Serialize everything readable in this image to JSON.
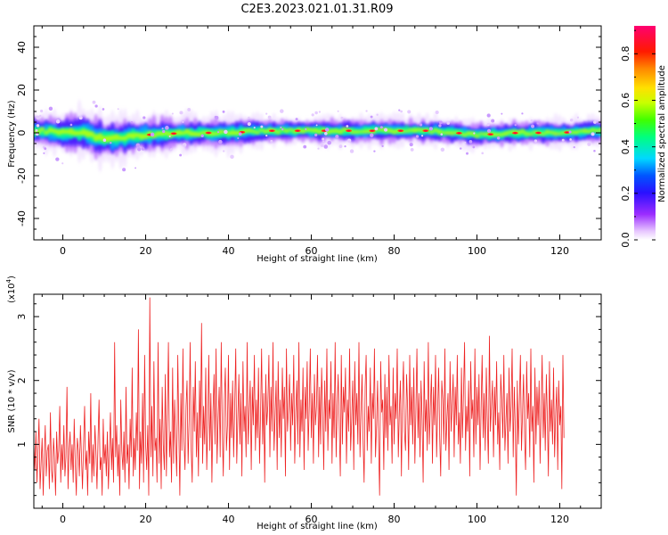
{
  "title": "C2E3.2023.021.01.31.R09",
  "colors": {
    "snr_line": "#ee2222",
    "axis": "#000000"
  },
  "chart_data": [
    {
      "type": "heatmap",
      "xlabel": "Height of straight line (km)",
      "ylabel": "Frequency (Hz)",
      "xlim": [
        -7,
        130
      ],
      "ylim": [
        -50,
        50
      ],
      "xticks": [
        0,
        20,
        40,
        60,
        80,
        100,
        120
      ],
      "xtick_labels": [
        "0",
        "20",
        "40",
        "60",
        "80",
        "100",
        "120"
      ],
      "yticks": [
        -40,
        -20,
        0,
        20,
        40
      ],
      "ytick_labels": [
        "-40",
        "-20",
        "0",
        "20",
        "40"
      ],
      "colorbar": {
        "label": "Normalized spectral amplitude",
        "range": [
          0,
          0.92
        ],
        "ticks": [
          0.0,
          0.2,
          0.4,
          0.6,
          0.8
        ],
        "tick_labels": [
          "0.0",
          "0.2",
          "0.4",
          "0.6",
          "0.8"
        ],
        "colormap": "rainbow (white-violet-blue-cyan-green-yellow-red-magenta)"
      },
      "band": {
        "height_km": [
          -5,
          0,
          5,
          10,
          20,
          30,
          40,
          50,
          60,
          70,
          80,
          90,
          100,
          110,
          120,
          128
        ],
        "center_freq_hz": [
          1,
          0,
          0,
          -3,
          -1,
          0,
          0,
          1,
          1,
          1,
          1,
          1,
          -1,
          0,
          0,
          1
        ],
        "halfwidth_hz": [
          5,
          6,
          7,
          7,
          6,
          5,
          5,
          4,
          4,
          4,
          4,
          4,
          4,
          4,
          4,
          4
        ]
      }
    },
    {
      "type": "line",
      "xlabel": "Height of straight line (km)",
      "ylabel": "SNR (10 * v/v)",
      "multiplier": "(x10",
      "multiplier_exp": "4",
      "multiplier_close": ")",
      "xlim": [
        -7,
        130
      ],
      "ylim": [
        0,
        3.35
      ],
      "xticks": [
        0,
        20,
        40,
        60,
        80,
        100,
        120
      ],
      "xtick_labels": [
        "0",
        "20",
        "40",
        "60",
        "80",
        "100",
        "120"
      ],
      "yticks": [
        1,
        2,
        3
      ],
      "ytick_labels": [
        "1",
        "2",
        "3"
      ],
      "series": [
        {
          "color": "#ee2222",
          "x_start": -7,
          "x_step": 0.25,
          "y": [
            1.0,
            0.6,
            1.2,
            0.4,
            0.9,
            1.4,
            0.3,
            0.7,
            1.1,
            0.2,
            0.8,
            1.3,
            0.5,
            0.9,
            1.0,
            0.3,
            1.5,
            0.6,
            0.4,
            1.1,
            0.8,
            0.2,
            1.2,
            0.7,
            0.9,
            1.6,
            0.4,
            1.0,
            0.6,
            1.3,
            0.5,
            0.8,
            1.9,
            0.3,
            0.9,
            1.2,
            0.6,
            1.0,
            0.4,
            1.4,
            0.7,
            0.2,
            1.1,
            0.9,
            0.5,
            1.3,
            0.8,
            0.3,
            1.0,
            1.6,
            0.6,
            0.9,
            0.2,
            1.2,
            0.7,
            1.8,
            0.4,
            1.0,
            0.5,
            1.3,
            0.9,
            0.3,
            1.1,
            1.7,
            0.6,
            0.8,
            0.2,
            1.4,
            0.7,
            1.0,
            0.5,
            1.2,
            0.3,
            0.9,
            1.5,
            0.6,
            1.1,
            0.4,
            2.6,
            0.8,
            1.3,
            0.5,
            1.0,
            0.2,
            1.7,
            0.9,
            0.6,
            1.2,
            0.4,
            1.9,
            0.7,
            1.0,
            0.3,
            1.4,
            0.8,
            2.2,
            0.5,
            1.1,
            0.6,
            1.5,
            0.9,
            2.8,
            0.3,
            1.2,
            0.7,
            1.8,
            0.4,
            2.4,
            1.0,
            0.6,
            1.3,
            0.2,
            3.3,
            0.8,
            1.6,
            0.5,
            2.3,
            0.9,
            1.1,
            0.4,
            2.6,
            0.7,
            1.4,
            0.3,
            1.9,
            1.0,
            0.6,
            2.1,
            0.5,
            1.5,
            2.6,
            0.8,
            1.2,
            0.4,
            2.2,
            0.7,
            1.7,
            1.0,
            0.5,
            2.4,
            1.3,
            0.2,
            1.8,
            0.9,
            2.5,
            1.1,
            0.6,
            1.6,
            2.0,
            0.7,
            1.4,
            2.6,
            0.9,
            0.4,
            1.9,
            1.2,
            2.3,
            0.8,
            1.5,
            0.5,
            2.0,
            1.1,
            2.9,
            0.7,
            1.6,
            1.0,
            2.2,
            0.6,
            1.3,
            2.4,
            0.9,
            1.8,
            0.4,
            1.5,
            2.1,
            1.0,
            2.5,
            0.7,
            1.4,
            1.9,
            0.8,
            2.6,
            1.2,
            0.5,
            1.7,
            2.2,
            0.9,
            1.3,
            2.4,
            0.6,
            1.8,
            1.1,
            2.0,
            0.8,
            1.6,
            2.5,
            0.7,
            1.4,
            2.1,
            1.0,
            1.8,
            0.5,
            2.3,
            1.2,
            1.6,
            0.8,
            2.6,
            1.0,
            1.5,
            2.0,
            0.6,
            1.9,
            1.3,
            2.4,
            0.9,
            1.7,
            1.1,
            2.2,
            0.7,
            1.5,
            2.5,
            1.0,
            1.8,
            0.4,
            2.1,
            1.3,
            1.6,
            2.4,
            0.8,
            1.9,
            1.2,
            2.6,
            0.9,
            1.4,
            2.0,
            0.6,
            2.3,
            1.1,
            1.7,
            0.8,
            2.2,
            1.4,
            1.9,
            0.5,
            2.5,
            1.2,
            1.6,
            2.1,
            0.9,
            1.8,
            1.3,
            2.4,
            0.7,
            1.5,
            2.0,
            1.0,
            2.6,
            0.8,
            1.7,
            1.2,
            2.2,
            0.6,
            1.9,
            1.4,
            2.3,
            0.9,
            1.6,
            2.5,
            1.1,
            1.8,
            0.7,
            2.1,
            1.3,
            1.6,
            2.4,
            0.8,
            1.9,
            1.0,
            2.2,
            1.5,
            0.6,
            2.0,
            1.2,
            2.5,
            0.9,
            1.7,
            1.4,
            2.3,
            0.7,
            1.8,
            1.1,
            2.6,
            0.8,
            1.6,
            2.1,
            1.3,
            0.5,
            2.4,
            1.0,
            1.9,
            1.5,
            2.2,
            0.7,
            1.7,
            1.2,
            2.5,
            0.9,
            1.4,
            2.0,
            0.6,
            2.3,
            1.3,
            1.8,
            1.0,
            2.6,
            0.8,
            1.5,
            2.1,
            1.1,
            0.4,
            1.9,
            2.4,
            0.9,
            1.6,
            1.2,
            2.2,
            0.7,
            1.8,
            1.4,
            2.5,
            0.8,
            1.3,
            2.0,
            1.0,
            0.2,
            2.3,
            1.5,
            1.7,
            0.6,
            2.1,
            1.1,
            1.9,
            0.9,
            2.4,
            1.3,
            1.6,
            0.7,
            2.2,
            1.0,
            1.8,
            1.4,
            2.5,
            0.8,
            1.5,
            2.0,
            0.5,
            1.7,
            2.3,
            1.2,
            0.9,
            2.1,
            1.6,
            0.6,
            2.4,
            1.3,
            1.9,
            1.0,
            2.2,
            0.7,
            1.5,
            2.5,
            1.1,
            1.8,
            0.8,
            2.0,
            1.4,
            0.4,
            2.3,
            1.2,
            1.7,
            0.9,
            2.6,
            1.0,
            1.6,
            2.1,
            0.7,
            1.9,
            1.3,
            2.4,
            0.8,
            1.5,
            2.2,
            1.1,
            0.5,
            2.0,
            1.7,
            1.0,
            2.5,
            0.9,
            1.4,
            1.8,
            0.6,
            2.3,
            1.2,
            1.6,
            2.1,
            0.8,
            1.9,
            1.3,
            2.4,
            1.0,
            1.5,
            0.7,
            2.2,
            1.1,
            1.8,
            2.6,
            0.9,
            1.6,
            1.2,
            2.0,
            0.5,
            2.3,
            1.4,
            1.7,
            0.8,
            2.5,
            1.0,
            1.9,
            1.3,
            2.1,
            0.6,
            1.6,
            2.4,
            1.1,
            1.8,
            0.9,
            2.2,
            1.4,
            0.7,
            2.7,
            1.2,
            1.6,
            2.0,
            0.8,
            1.9,
            1.3,
            2.3,
            1.0,
            1.5,
            0.6,
            2.1,
            1.7,
            1.1,
            2.4,
            0.9,
            1.4,
            1.8,
            0.7,
            2.2,
            1.2,
            1.6,
            2.5,
            0.8,
            1.9,
            1.3,
            0.2,
            2.0,
            1.0,
            1.7,
            2.4,
            0.9,
            1.5,
            2.1,
            1.1,
            0.6,
            2.3,
            1.4,
            1.8,
            0.8,
            2.5,
            1.2,
            1.6,
            0.4,
            2.2,
            1.0,
            1.9,
            1.3,
            2.0,
            0.7,
            1.6,
            2.4,
            1.1,
            1.8,
            0.9,
            2.1,
            1.4,
            0.5,
            2.3,
            1.2,
            1.7,
            1.0,
            2.2,
            0.8,
            1.5,
            1.9,
            0.6,
            2.0,
            1.3,
            1.6,
            0.3,
            2.4,
            1.1
          ]
        }
      ]
    }
  ]
}
